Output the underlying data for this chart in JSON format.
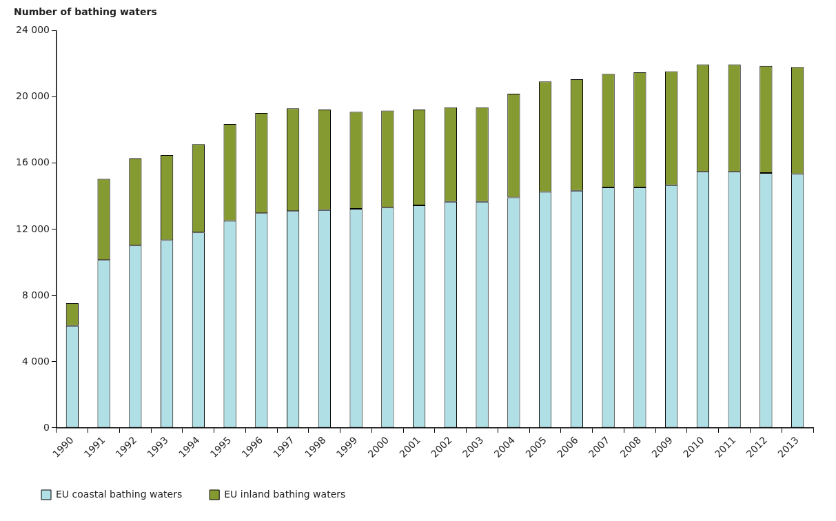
{
  "chart_data": {
    "type": "bar",
    "ylabel": "Number of bathing waters",
    "categories": [
      "1990",
      "1991",
      "1992",
      "1993",
      "1994",
      "1995",
      "1996",
      "1997",
      "1998",
      "1999",
      "2000",
      "2001",
      "2002",
      "2003",
      "2004",
      "2005",
      "2006",
      "2007",
      "2008",
      "2009",
      "2010",
      "2011",
      "2012",
      "2013"
    ],
    "series": [
      {
        "name": "EU coastal bathing waters",
        "color": "#b0e0e6",
        "values": [
          6170,
          10150,
          11030,
          11350,
          11820,
          12510,
          12980,
          13110,
          13170,
          13240,
          13320,
          13450,
          13670,
          13670,
          13930,
          14260,
          14340,
          14540,
          14540,
          14670,
          15480,
          15480,
          15410,
          15350
        ]
      },
      {
        "name": "EU inland bathing waters",
        "color": "#869a32",
        "values": [
          1370,
          4910,
          5250,
          5140,
          5330,
          5860,
          6050,
          6210,
          6070,
          5870,
          5860,
          5790,
          5710,
          5710,
          6270,
          6680,
          6740,
          6860,
          6950,
          6880,
          6490,
          6490,
          6470,
          6470
        ]
      }
    ],
    "stacked": true,
    "ylim": [
      0,
      24000
    ],
    "yticks": [
      {
        "value": 0,
        "label": "0"
      },
      {
        "value": 4000,
        "label": "4 000"
      },
      {
        "value": 8000,
        "label": "8 000"
      },
      {
        "value": 12000,
        "label": "12 000"
      },
      {
        "value": 16000,
        "label": "16 000"
      },
      {
        "value": 20000,
        "label": "20 000"
      },
      {
        "value": 24000,
        "label": "24 000"
      }
    ],
    "grid": false,
    "legend": "bottom left"
  }
}
